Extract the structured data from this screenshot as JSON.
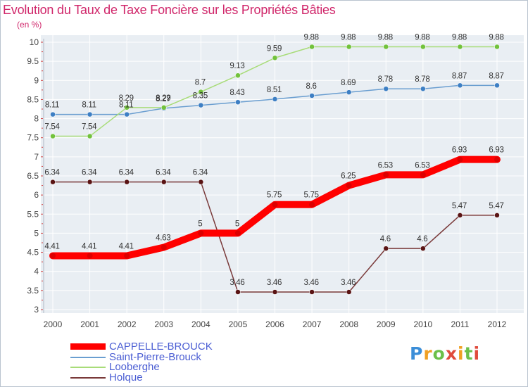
{
  "title": "Evolution du Taux de Taxe Foncière sur les Propriétés Bâties",
  "unit_label": "(en %)",
  "brand": "Proxiti",
  "chart_data": {
    "type": "line",
    "title": "Evolution du Taux de Taxe Foncière sur les Propriétés Bâties",
    "ylabel": "(en %)",
    "xlabel": "",
    "categories": [
      "2000",
      "2001",
      "2002",
      "2003",
      "2004",
      "2005",
      "2006",
      "2007",
      "2008",
      "2009",
      "2010",
      "2011",
      "2012"
    ],
    "ylim": [
      3,
      10
    ],
    "yticks": [
      "3",
      "3.5",
      "4",
      "4.5",
      "5",
      "5.5",
      "6",
      "6.5",
      "7",
      "7.5",
      "8",
      "8.5",
      "9",
      "9.5",
      "10"
    ],
    "legend_position": "bottom-left",
    "series": [
      {
        "name": "CAPPELLE-BROUCK",
        "color": "#ff0000",
        "marker": "#dd0000",
        "values": [
          4.41,
          4.41,
          4.41,
          4.63,
          5,
          5,
          5.75,
          5.75,
          6.25,
          6.53,
          6.53,
          6.93,
          6.93
        ],
        "labels": [
          "4.41",
          "4.41",
          "4.41",
          "4.63",
          "5",
          "5",
          "5.75",
          "5.75",
          "6.25",
          "6.53",
          "6.53",
          "6.93",
          "6.93"
        ]
      },
      {
        "name": "Saint-Pierre-Brouck",
        "color": "#6a9ed0",
        "marker": "#3d7fc4",
        "values": [
          8.11,
          8.11,
          8.11,
          8.27,
          8.35,
          8.43,
          8.51,
          8.6,
          8.69,
          8.78,
          8.78,
          8.87,
          8.87
        ],
        "labels": [
          "8.11",
          "8.11",
          "8.11",
          "8.27",
          "8.35",
          "8.43",
          "8.51",
          "8.6",
          "8.69",
          "8.78",
          "8.78",
          "8.87",
          "8.87"
        ]
      },
      {
        "name": "Looberghe",
        "color": "#a8dc78",
        "marker": "#72c23c",
        "values": [
          7.54,
          7.54,
          8.29,
          8.29,
          8.7,
          9.13,
          9.59,
          9.88,
          9.88,
          9.88,
          9.88,
          9.88,
          9.88
        ],
        "labels": [
          "7.54",
          "7.54",
          "8.29",
          "8.29",
          "8.7",
          "9.13",
          "9.59",
          "9.88",
          "9.88",
          "9.88",
          "9.88",
          "9.88",
          "9.88"
        ]
      },
      {
        "name": "Holque",
        "color": "#7a3a3a",
        "marker": "#5a1414",
        "values": [
          6.34,
          6.34,
          6.34,
          6.34,
          6.34,
          3.46,
          3.46,
          3.46,
          3.46,
          4.6,
          4.6,
          5.47,
          5.47
        ],
        "labels": [
          "6.34",
          "6.34",
          "6.34",
          "6.34",
          "6.34",
          "3.46",
          "3.46",
          "3.46",
          "3.46",
          "4.6",
          "4.6",
          "5.47",
          "5.47"
        ]
      }
    ]
  }
}
